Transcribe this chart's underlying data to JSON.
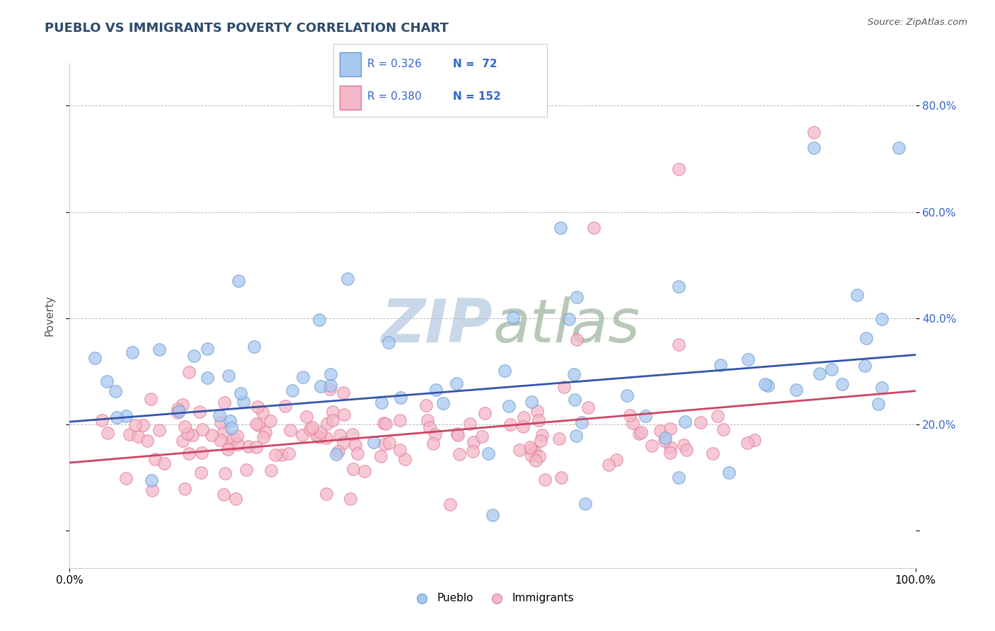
{
  "title": "PUEBLO VS IMMIGRANTS POVERTY CORRELATION CHART",
  "source": "Source: ZipAtlas.com",
  "ylabel": "Poverty",
  "pueblo_color": "#A8C8F0",
  "pueblo_edge_color": "#6699CC",
  "immigrants_color": "#F5B8C8",
  "immigrants_edge_color": "#DD7799",
  "trend_blue": "#3355AA",
  "trend_pink": "#CC4466",
  "R_pueblo": 0.326,
  "N_pueblo": 72,
  "R_immigrants": 0.38,
  "N_immigrants": 152,
  "background_color": "#FFFFFF",
  "grid_color": "#BBBBBB",
  "title_color": "#2E4A6E",
  "tick_color": "#3366CC",
  "watermark_color": "#C8D8E8",
  "seed_pueblo": 42,
  "seed_immigrants": 99
}
